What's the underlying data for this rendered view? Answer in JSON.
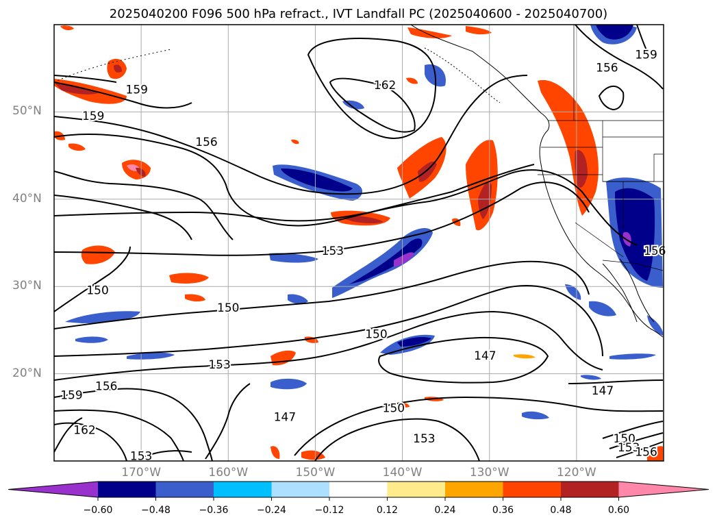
{
  "title": "2025040200 F096 500 hPa refract., IVT Landfall PC (2025040600 - 2025040700)",
  "latitude_labels": [
    {
      "label": "50°N",
      "lat": 50
    },
    {
      "label": "40°N",
      "lat": 40
    },
    {
      "label": "30°N",
      "lat": 30
    },
    {
      "label": "20°N",
      "lat": 20
    }
  ],
  "longitude_labels": [
    {
      "label": "170°W",
      "lon": -170
    },
    {
      "label": "160°W",
      "lon": -160
    },
    {
      "label": "150°W",
      "lon": -150
    },
    {
      "label": "140°W",
      "lon": -140
    },
    {
      "label": "130°W",
      "lon": -130
    },
    {
      "label": "120°W",
      "lon": -120
    }
  ],
  "map_extent": {
    "lon_min": -180,
    "lon_max": -110,
    "lat_min": 10,
    "lat_max": 60
  },
  "contour_labels": [
    {
      "text": "159",
      "lon": -170.5,
      "lat": 52.5
    },
    {
      "text": "159",
      "lon": -175.5,
      "lat": 49.5
    },
    {
      "text": "156",
      "lon": -162.5,
      "lat": 46.5
    },
    {
      "text": "162",
      "lon": -142,
      "lat": 53
    },
    {
      "text": "156",
      "lon": -116.5,
      "lat": 55
    },
    {
      "text": "159",
      "lon": -112,
      "lat": 56.5
    },
    {
      "text": "153",
      "lon": -148,
      "lat": 34
    },
    {
      "text": "150",
      "lon": -175,
      "lat": 29.5
    },
    {
      "text": "150",
      "lon": -160,
      "lat": 27.5
    },
    {
      "text": "150",
      "lon": -143,
      "lat": 24.5
    },
    {
      "text": "147",
      "lon": -130.5,
      "lat": 22
    },
    {
      "text": "153",
      "lon": -161,
      "lat": 21
    },
    {
      "text": "156",
      "lon": -174,
      "lat": 18.5
    },
    {
      "text": "159",
      "lon": -178,
      "lat": 17.5
    },
    {
      "text": "162",
      "lon": -176.5,
      "lat": 13.5
    },
    {
      "text": "147",
      "lon": -153.5,
      "lat": 15
    },
    {
      "text": "150",
      "lon": -141,
      "lat": 16
    },
    {
      "text": "153",
      "lon": -137.5,
      "lat": 12.5
    },
    {
      "text": "147",
      "lon": -117,
      "lat": 18
    },
    {
      "text": "150",
      "lon": -114.5,
      "lat": 12.5
    },
    {
      "text": "153",
      "lon": -114,
      "lat": 11.5
    },
    {
      "text": "156",
      "lon": -112,
      "lat": 11
    },
    {
      "text": "153",
      "lon": -170,
      "lat": 10.5
    },
    {
      "text": "156",
      "lon": -111,
      "lat": 34
    }
  ],
  "colorbar": {
    "ticks": [
      "−0.60",
      "−0.48",
      "−0.36",
      "−0.24",
      "−0.12",
      "0.12",
      "0.24",
      "0.36",
      "0.48",
      "0.60"
    ],
    "colors": [
      "#9932CC",
      "#00008B",
      "#3A5FCD",
      "#00BFFF",
      "#ADDFFF",
      "#FFFFFF",
      "#FFEB8C",
      "#FFA500",
      "#FF4500",
      "#B22222",
      "#FF88AA"
    ]
  },
  "colors": {
    "neg_extreme": "#9932CC",
    "neg_strong": "#00008B",
    "neg_mod": "#3A5FCD",
    "neg_light": "#00BFFF",
    "neg_faint": "#ADDFFF",
    "pos_faint": "#FFEB8C",
    "pos_light": "#FFA500",
    "pos_mod": "#FF4500",
    "pos_strong": "#B22222",
    "pos_extreme": "#FF88AA",
    "gridline": "#AAAAAA",
    "label_gray": "#808080"
  }
}
